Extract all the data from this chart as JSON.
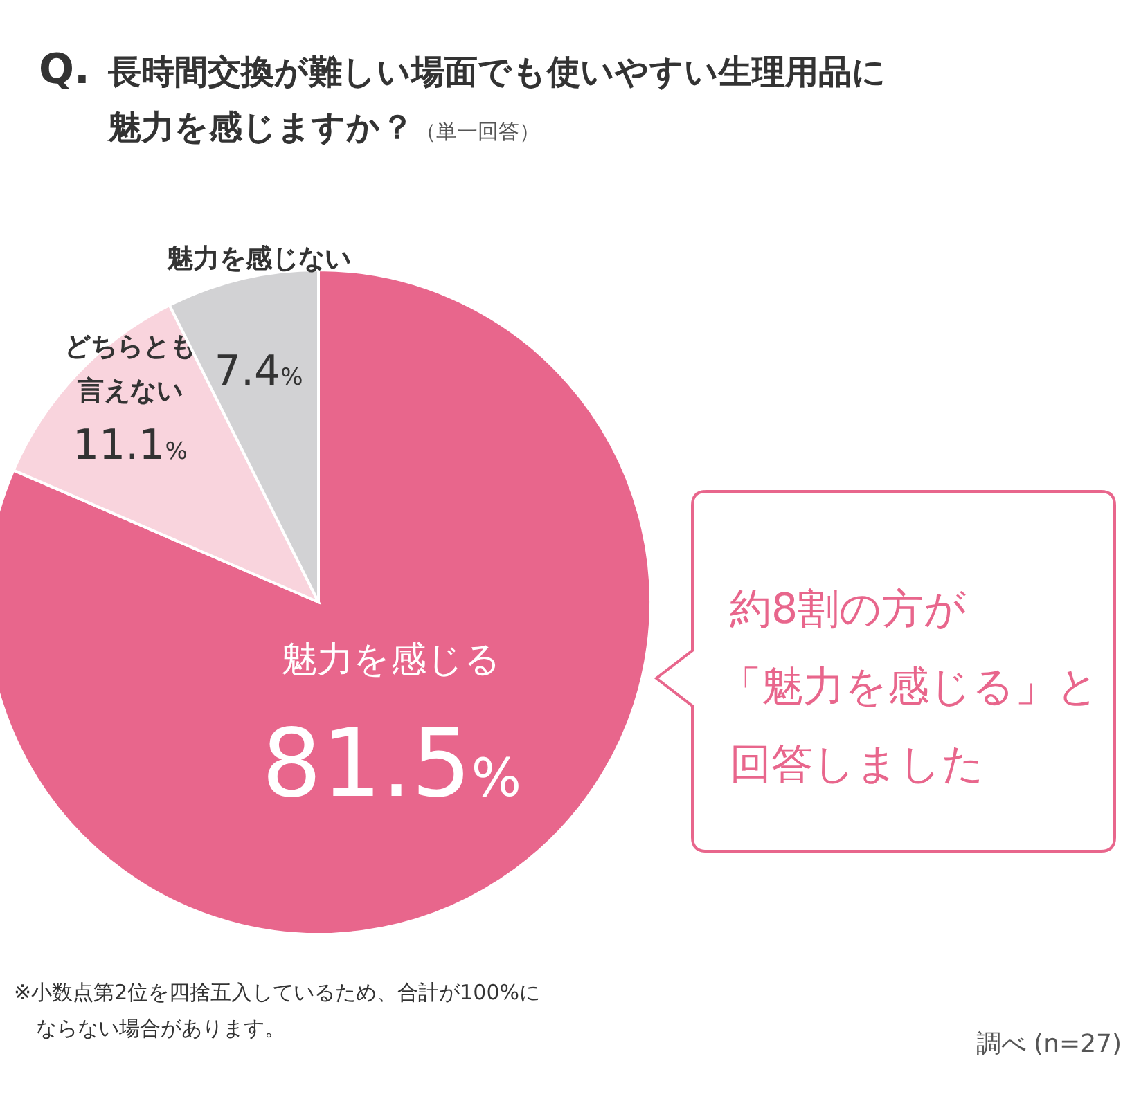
{
  "chart_data": {
    "type": "pie",
    "title": "Q. 長時間交換が難しい場面でも使いやすい生理用品に魅力を感じますか？",
    "subtitle": "（単一回答）",
    "categories": [
      "魅力を感じる",
      "どちらとも言えない",
      "魅力を感じない"
    ],
    "values": [
      81.5,
      11.1,
      7.4
    ],
    "colors": [
      "#e8668c",
      "#f9d4dd",
      "#d2d2d4"
    ],
    "value_labels": [
      "81.5%",
      "11.1%",
      "7.4%"
    ],
    "annotations": [
      "約8割の方が",
      "「魅力を感じる」と",
      "回答しました",
      "※小数点第2位を四捨五入しているため、合計が100%に",
      "ならない場合があります。",
      "調べ (n=27)"
    ]
  }
}
